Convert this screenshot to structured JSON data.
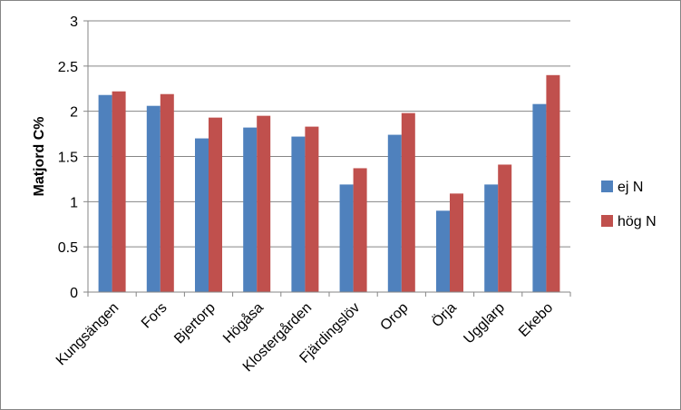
{
  "chart_data": {
    "type": "bar",
    "title": "",
    "xlabel": "",
    "ylabel": "Matjord C%",
    "ylim": [
      0,
      3
    ],
    "yticks": [
      "0",
      "0.5",
      "1",
      "1.5",
      "2",
      "2.5",
      "3"
    ],
    "grid": true,
    "legend_position": "right",
    "categories": [
      "Kungsängen",
      "Fors",
      "Bjertorp",
      "Högåsa",
      "Klostergården",
      "Fjärdingslöv",
      "Orop",
      "Örja",
      "Ugglarp",
      "Ekebo"
    ],
    "series": [
      {
        "name": "ej N",
        "color": "#4F81BD",
        "values": [
          2.18,
          2.06,
          1.7,
          1.82,
          1.72,
          1.19,
          1.74,
          0.9,
          1.19,
          2.08
        ]
      },
      {
        "name": "hög N",
        "color": "#C0504D",
        "values": [
          2.22,
          2.19,
          1.93,
          1.95,
          1.83,
          1.37,
          1.98,
          1.09,
          1.41,
          2.4
        ]
      }
    ]
  }
}
